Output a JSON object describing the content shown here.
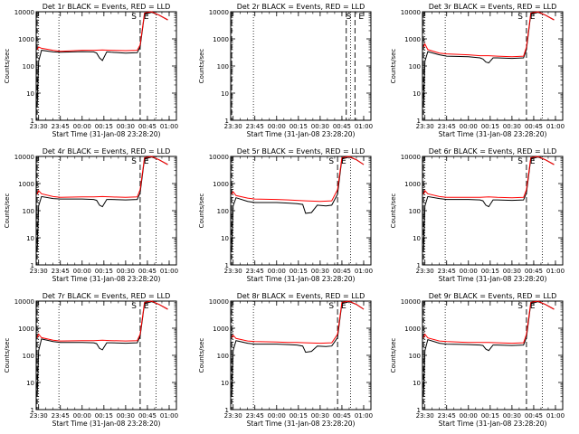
{
  "chart_data": [
    {
      "type": "line",
      "title": "Det 1r BLACK = Events, RED = LLD",
      "ylabel": "Counts/sec",
      "xlabel": "Start Time (31-Jan-08 23:28:20)",
      "xticks": [
        "23:30",
        "23:45",
        "00:00",
        "00:15",
        "00:30",
        "00:45",
        "01:00"
      ],
      "yticks": [
        "1",
        "10",
        "100",
        "1000",
        "10000"
      ],
      "ylim": [
        1,
        10000
      ],
      "yscale": "log",
      "markers": [
        "S",
        "E"
      ],
      "dotted_lines": [
        "23:30",
        "23:44",
        "00:51"
      ],
      "dashed_lines": [
        "23:29",
        "00:40"
      ],
      "series": [
        {
          "color": "#000000",
          "x": [
            "23:29",
            "23:30",
            "23:32",
            "23:40",
            "23:45",
            "00:00",
            "00:08",
            "00:10",
            "00:12",
            "00:14",
            "00:17",
            "00:20",
            "00:30",
            "00:38",
            "00:40",
            "00:43",
            "00:48",
            "00:53",
            "00:59"
          ],
          "y": [
            3,
            150,
            380,
            330,
            320,
            340,
            330,
            300,
            200,
            160,
            330,
            320,
            300,
            310,
            500,
            8000,
            9500,
            7500,
            5000
          ]
        },
        {
          "color": "#ff0000",
          "x": [
            "23:29",
            "23:30",
            "23:32",
            "23:40",
            "23:45",
            "00:00",
            "00:08",
            "00:14",
            "00:20",
            "00:30",
            "00:38",
            "00:40",
            "00:43",
            "00:48",
            "00:53",
            "00:59"
          ],
          "y": [
            400,
            500,
            450,
            380,
            350,
            380,
            380,
            390,
            380,
            370,
            380,
            600,
            9000,
            10000,
            7500,
            5000
          ]
        }
      ]
    },
    {
      "type": "line",
      "title": "Det 2r BLACK = Events, RED = LLD",
      "ylabel": "Counts/sec",
      "xlabel": "Start Time (31-Jan-08 23:28:20)",
      "xticks": [
        "23:30",
        "23:45",
        "00:00",
        "00:15",
        "00:30",
        "00:45",
        "01:00"
      ],
      "yticks": [
        "1",
        "10",
        "100",
        "1000",
        "10000"
      ],
      "ylim": [
        1,
        10000
      ],
      "yscale": "log",
      "markers": [
        "S",
        "E"
      ],
      "dotted_lines": [
        "23:44",
        "00:51"
      ],
      "dashed_lines": [
        "23:29",
        "00:48",
        "00:54"
      ],
      "series": []
    },
    {
      "type": "line",
      "title": "Det 3r BLACK = Events, RED = LLD",
      "ylabel": "Counts/sec",
      "xlabel": "Start Time (31-Jan-08 23:28:20)",
      "xticks": [
        "23:30",
        "23:45",
        "00:00",
        "00:15",
        "00:30",
        "00:45",
        "01:00"
      ],
      "yticks": [
        "1",
        "10",
        "100",
        "1000",
        "10000"
      ],
      "ylim": [
        1,
        10000
      ],
      "yscale": "log",
      "markers": [
        "S",
        "E"
      ],
      "dotted_lines": [
        "23:30",
        "23:44",
        "00:51"
      ],
      "dashed_lines": [
        "23:29",
        "00:40"
      ],
      "series": [
        {
          "color": "#000000",
          "x": [
            "23:29",
            "23:30",
            "23:32",
            "23:40",
            "23:45",
            "00:00",
            "00:08",
            "00:10",
            "00:12",
            "00:14",
            "00:17",
            "00:20",
            "00:30",
            "00:38",
            "00:40",
            "00:43",
            "00:48",
            "00:53",
            "00:59"
          ],
          "y": [
            3,
            150,
            340,
            260,
            230,
            220,
            200,
            180,
            140,
            130,
            200,
            200,
            190,
            200,
            400,
            8000,
            9500,
            7500,
            5000
          ]
        },
        {
          "color": "#ff0000",
          "x": [
            "23:29",
            "23:30",
            "23:32",
            "23:40",
            "23:45",
            "00:00",
            "00:08",
            "00:14",
            "00:20",
            "00:30",
            "00:38",
            "00:40",
            "00:43",
            "00:48",
            "00:53",
            "00:59"
          ],
          "y": [
            500,
            650,
            400,
            300,
            280,
            260,
            240,
            240,
            230,
            220,
            230,
            500,
            9000,
            10000,
            7500,
            5000
          ]
        }
      ]
    },
    {
      "type": "line",
      "title": "Det 4r BLACK = Events, RED = LLD",
      "ylabel": "Counts/sec",
      "xlabel": "Start Time (31-Jan-08 23:28:20)",
      "xticks": [
        "23:30",
        "23:45",
        "00:00",
        "00:15",
        "00:30",
        "00:45",
        "01:00"
      ],
      "yticks": [
        "1",
        "10",
        "100",
        "1000",
        "10000"
      ],
      "ylim": [
        1,
        10000
      ],
      "yscale": "log",
      "markers": [
        "S",
        "E"
      ],
      "dotted_lines": [
        "23:30",
        "23:44",
        "00:51"
      ],
      "dashed_lines": [
        "23:29",
        "00:40"
      ],
      "series": [
        {
          "color": "#000000",
          "x": [
            "23:29",
            "23:30",
            "23:32",
            "23:40",
            "23:45",
            "00:00",
            "00:08",
            "00:10",
            "00:12",
            "00:14",
            "00:17",
            "00:20",
            "00:30",
            "00:38",
            "00:40",
            "00:43",
            "00:48",
            "00:53",
            "00:59"
          ],
          "y": [
            3,
            150,
            330,
            280,
            270,
            270,
            260,
            240,
            160,
            140,
            260,
            260,
            250,
            260,
            450,
            8000,
            9500,
            7500,
            5000
          ]
        },
        {
          "color": "#ff0000",
          "x": [
            "23:29",
            "23:30",
            "23:32",
            "23:40",
            "23:45",
            "00:00",
            "00:08",
            "00:14",
            "00:20",
            "00:30",
            "00:38",
            "00:40",
            "00:43",
            "00:48",
            "00:53",
            "00:59"
          ],
          "y": [
            400,
            550,
            420,
            330,
            310,
            320,
            320,
            330,
            320,
            310,
            320,
            600,
            9000,
            10000,
            7500,
            5000
          ]
        }
      ]
    },
    {
      "type": "line",
      "title": "Det 5r BLACK = Events, RED = LLD",
      "ylabel": "Counts/sec",
      "xlabel": "Start Time (31-Jan-08 23:28:20)",
      "xticks": [
        "23:30",
        "23:45",
        "00:00",
        "00:15",
        "00:30",
        "00:45",
        "01:00"
      ],
      "yticks": [
        "1",
        "10",
        "100",
        "1000",
        "10000"
      ],
      "ylim": [
        1,
        10000
      ],
      "yscale": "log",
      "markers": [
        "S",
        "E"
      ],
      "dotted_lines": [
        "23:30",
        "23:44",
        "00:51"
      ],
      "dashed_lines": [
        "23:29",
        "00:42"
      ],
      "series": [
        {
          "color": "#000000",
          "x": [
            "23:29",
            "23:30",
            "23:32",
            "23:40",
            "23:45",
            "00:00",
            "00:08",
            "00:14",
            "00:18",
            "00:20",
            "00:24",
            "00:28",
            "00:34",
            "00:38",
            "00:42",
            "00:45",
            "00:50",
            "00:55",
            "01:00"
          ],
          "y": [
            3,
            150,
            300,
            220,
            200,
            200,
            190,
            180,
            170,
            80,
            85,
            160,
            150,
            160,
            400,
            8000,
            9500,
            7500,
            5000
          ]
        },
        {
          "color": "#ff0000",
          "x": [
            "23:29",
            "23:30",
            "23:32",
            "23:40",
            "23:45",
            "00:00",
            "00:08",
            "00:14",
            "00:20",
            "00:30",
            "00:38",
            "00:42",
            "00:45",
            "00:50",
            "00:55",
            "01:00"
          ],
          "y": [
            400,
            500,
            360,
            290,
            270,
            260,
            250,
            240,
            230,
            220,
            230,
            600,
            9000,
            10000,
            7500,
            5000
          ]
        }
      ]
    },
    {
      "type": "line",
      "title": "Det 6r BLACK = Events, RED = LLD",
      "ylabel": "Counts/sec",
      "xlabel": "Start Time (31-Jan-08 23:28:20)",
      "xticks": [
        "23:30",
        "23:45",
        "00:00",
        "00:15",
        "00:30",
        "00:45",
        "01:00"
      ],
      "yticks": [
        "1",
        "10",
        "100",
        "1000",
        "10000"
      ],
      "ylim": [
        1,
        10000
      ],
      "yscale": "log",
      "markers": [
        "S",
        "E"
      ],
      "dotted_lines": [
        "23:30",
        "23:44",
        "00:51"
      ],
      "dashed_lines": [
        "23:29",
        "00:40"
      ],
      "series": [
        {
          "color": "#000000",
          "x": [
            "23:29",
            "23:30",
            "23:32",
            "23:40",
            "23:45",
            "00:00",
            "00:08",
            "00:10",
            "00:12",
            "00:14",
            "00:17",
            "00:20",
            "00:30",
            "00:38",
            "00:40",
            "00:43",
            "00:48",
            "00:53",
            "00:59"
          ],
          "y": [
            3,
            150,
            330,
            280,
            260,
            260,
            250,
            230,
            160,
            140,
            250,
            250,
            240,
            250,
            450,
            8000,
            9500,
            7500,
            5000
          ]
        },
        {
          "color": "#ff0000",
          "x": [
            "23:29",
            "23:30",
            "23:32",
            "23:40",
            "23:45",
            "00:00",
            "00:08",
            "00:14",
            "00:20",
            "00:30",
            "00:38",
            "00:40",
            "00:43",
            "00:48",
            "00:53",
            "00:59"
          ],
          "y": [
            400,
            550,
            420,
            330,
            310,
            310,
            310,
            320,
            310,
            300,
            310,
            600,
            9000,
            10000,
            7500,
            5000
          ]
        }
      ]
    },
    {
      "type": "line",
      "title": "Det 7r BLACK = Events, RED = LLD",
      "ylabel": "Counts/sec",
      "xlabel": "Start Time (31-Jan-08 23:28:20)",
      "xticks": [
        "23:30",
        "23:45",
        "00:00",
        "00:15",
        "00:30",
        "00:45",
        "01:00"
      ],
      "yticks": [
        "1",
        "10",
        "100",
        "1000",
        "10000"
      ],
      "ylim": [
        1,
        10000
      ],
      "yscale": "log",
      "markers": [
        "S",
        "E"
      ],
      "dotted_lines": [
        "23:30",
        "23:44",
        "00:51"
      ],
      "dashed_lines": [
        "23:29",
        "00:40"
      ],
      "series": [
        {
          "color": "#000000",
          "x": [
            "23:29",
            "23:30",
            "23:32",
            "23:40",
            "23:45",
            "00:00",
            "00:08",
            "00:10",
            "00:12",
            "00:14",
            "00:17",
            "00:20",
            "00:30",
            "00:38",
            "00:40",
            "00:43",
            "00:48",
            "00:53",
            "00:59"
          ],
          "y": [
            3,
            150,
            400,
            320,
            300,
            300,
            290,
            270,
            180,
            160,
            290,
            290,
            280,
            290,
            500,
            8000,
            9500,
            7500,
            5000
          ]
        },
        {
          "color": "#ff0000",
          "x": [
            "23:29",
            "23:30",
            "23:32",
            "23:40",
            "23:45",
            "00:00",
            "00:08",
            "00:14",
            "00:20",
            "00:30",
            "00:38",
            "00:40",
            "00:43",
            "00:48",
            "00:53",
            "00:59"
          ],
          "y": [
            450,
            600,
            450,
            360,
            340,
            350,
            350,
            360,
            350,
            340,
            350,
            600,
            9000,
            10000,
            7500,
            5000
          ]
        }
      ]
    },
    {
      "type": "line",
      "title": "Det 8r BLACK = Events, RED = LLD",
      "ylabel": "Counts/sec",
      "xlabel": "Start Time (31-Jan-08 23:28:20)",
      "xticks": [
        "23:30",
        "23:45",
        "00:00",
        "00:15",
        "00:30",
        "00:45",
        "01:00"
      ],
      "yticks": [
        "1",
        "10",
        "100",
        "1000",
        "10000"
      ],
      "ylim": [
        1,
        10000
      ],
      "yscale": "log",
      "markers": [
        "S",
        "E"
      ],
      "dotted_lines": [
        "23:30",
        "23:44",
        "00:51"
      ],
      "dashed_lines": [
        "23:29",
        "00:42"
      ],
      "series": [
        {
          "color": "#000000",
          "x": [
            "23:29",
            "23:30",
            "23:32",
            "23:40",
            "23:45",
            "00:00",
            "00:08",
            "00:14",
            "00:18",
            "00:20",
            "00:24",
            "00:28",
            "00:34",
            "00:38",
            "00:42",
            "00:45",
            "00:50",
            "00:55",
            "01:00"
          ],
          "y": [
            3,
            150,
            350,
            280,
            260,
            260,
            250,
            240,
            220,
            130,
            140,
            220,
            210,
            220,
            450,
            8000,
            9500,
            7500,
            5000
          ]
        },
        {
          "color": "#ff0000",
          "x": [
            "23:29",
            "23:30",
            "23:32",
            "23:40",
            "23:45",
            "00:00",
            "00:08",
            "00:14",
            "00:20",
            "00:30",
            "00:38",
            "00:42",
            "00:45",
            "00:50",
            "00:55",
            "01:00"
          ],
          "y": [
            450,
            550,
            420,
            340,
            320,
            310,
            300,
            300,
            290,
            280,
            290,
            600,
            9000,
            10000,
            7500,
            5000
          ]
        }
      ]
    },
    {
      "type": "line",
      "title": "Det 9r BLACK = Events, RED = LLD",
      "ylabel": "Counts/sec",
      "xlabel": "Start Time (31-Jan-08 23:28:20)",
      "xticks": [
        "23:30",
        "23:45",
        "00:00",
        "00:15",
        "00:30",
        "00:45",
        "01:00"
      ],
      "yticks": [
        "1",
        "10",
        "100",
        "1000",
        "10000"
      ],
      "ylim": [
        1,
        10000
      ],
      "yscale": "log",
      "markers": [
        "S",
        "E"
      ],
      "dotted_lines": [
        "23:30",
        "23:44",
        "00:51"
      ],
      "dashed_lines": [
        "23:29",
        "00:40"
      ],
      "series": [
        {
          "color": "#000000",
          "x": [
            "23:29",
            "23:30",
            "23:32",
            "23:40",
            "23:45",
            "00:00",
            "00:08",
            "00:10",
            "00:12",
            "00:14",
            "00:17",
            "00:20",
            "00:30",
            "00:38",
            "00:40",
            "00:43",
            "00:48",
            "00:53",
            "00:59"
          ],
          "y": [
            3,
            150,
            380,
            280,
            260,
            250,
            240,
            230,
            170,
            150,
            240,
            240,
            230,
            240,
            450,
            8000,
            9500,
            7500,
            5000
          ]
        },
        {
          "color": "#ff0000",
          "x": [
            "23:29",
            "23:30",
            "23:32",
            "23:40",
            "23:45",
            "00:00",
            "00:08",
            "00:14",
            "00:20",
            "00:30",
            "00:38",
            "00:40",
            "00:43",
            "00:48",
            "00:53",
            "00:59"
          ],
          "y": [
            450,
            600,
            440,
            340,
            320,
            300,
            300,
            300,
            290,
            280,
            290,
            600,
            9000,
            10000,
            7500,
            5000
          ]
        }
      ]
    }
  ]
}
